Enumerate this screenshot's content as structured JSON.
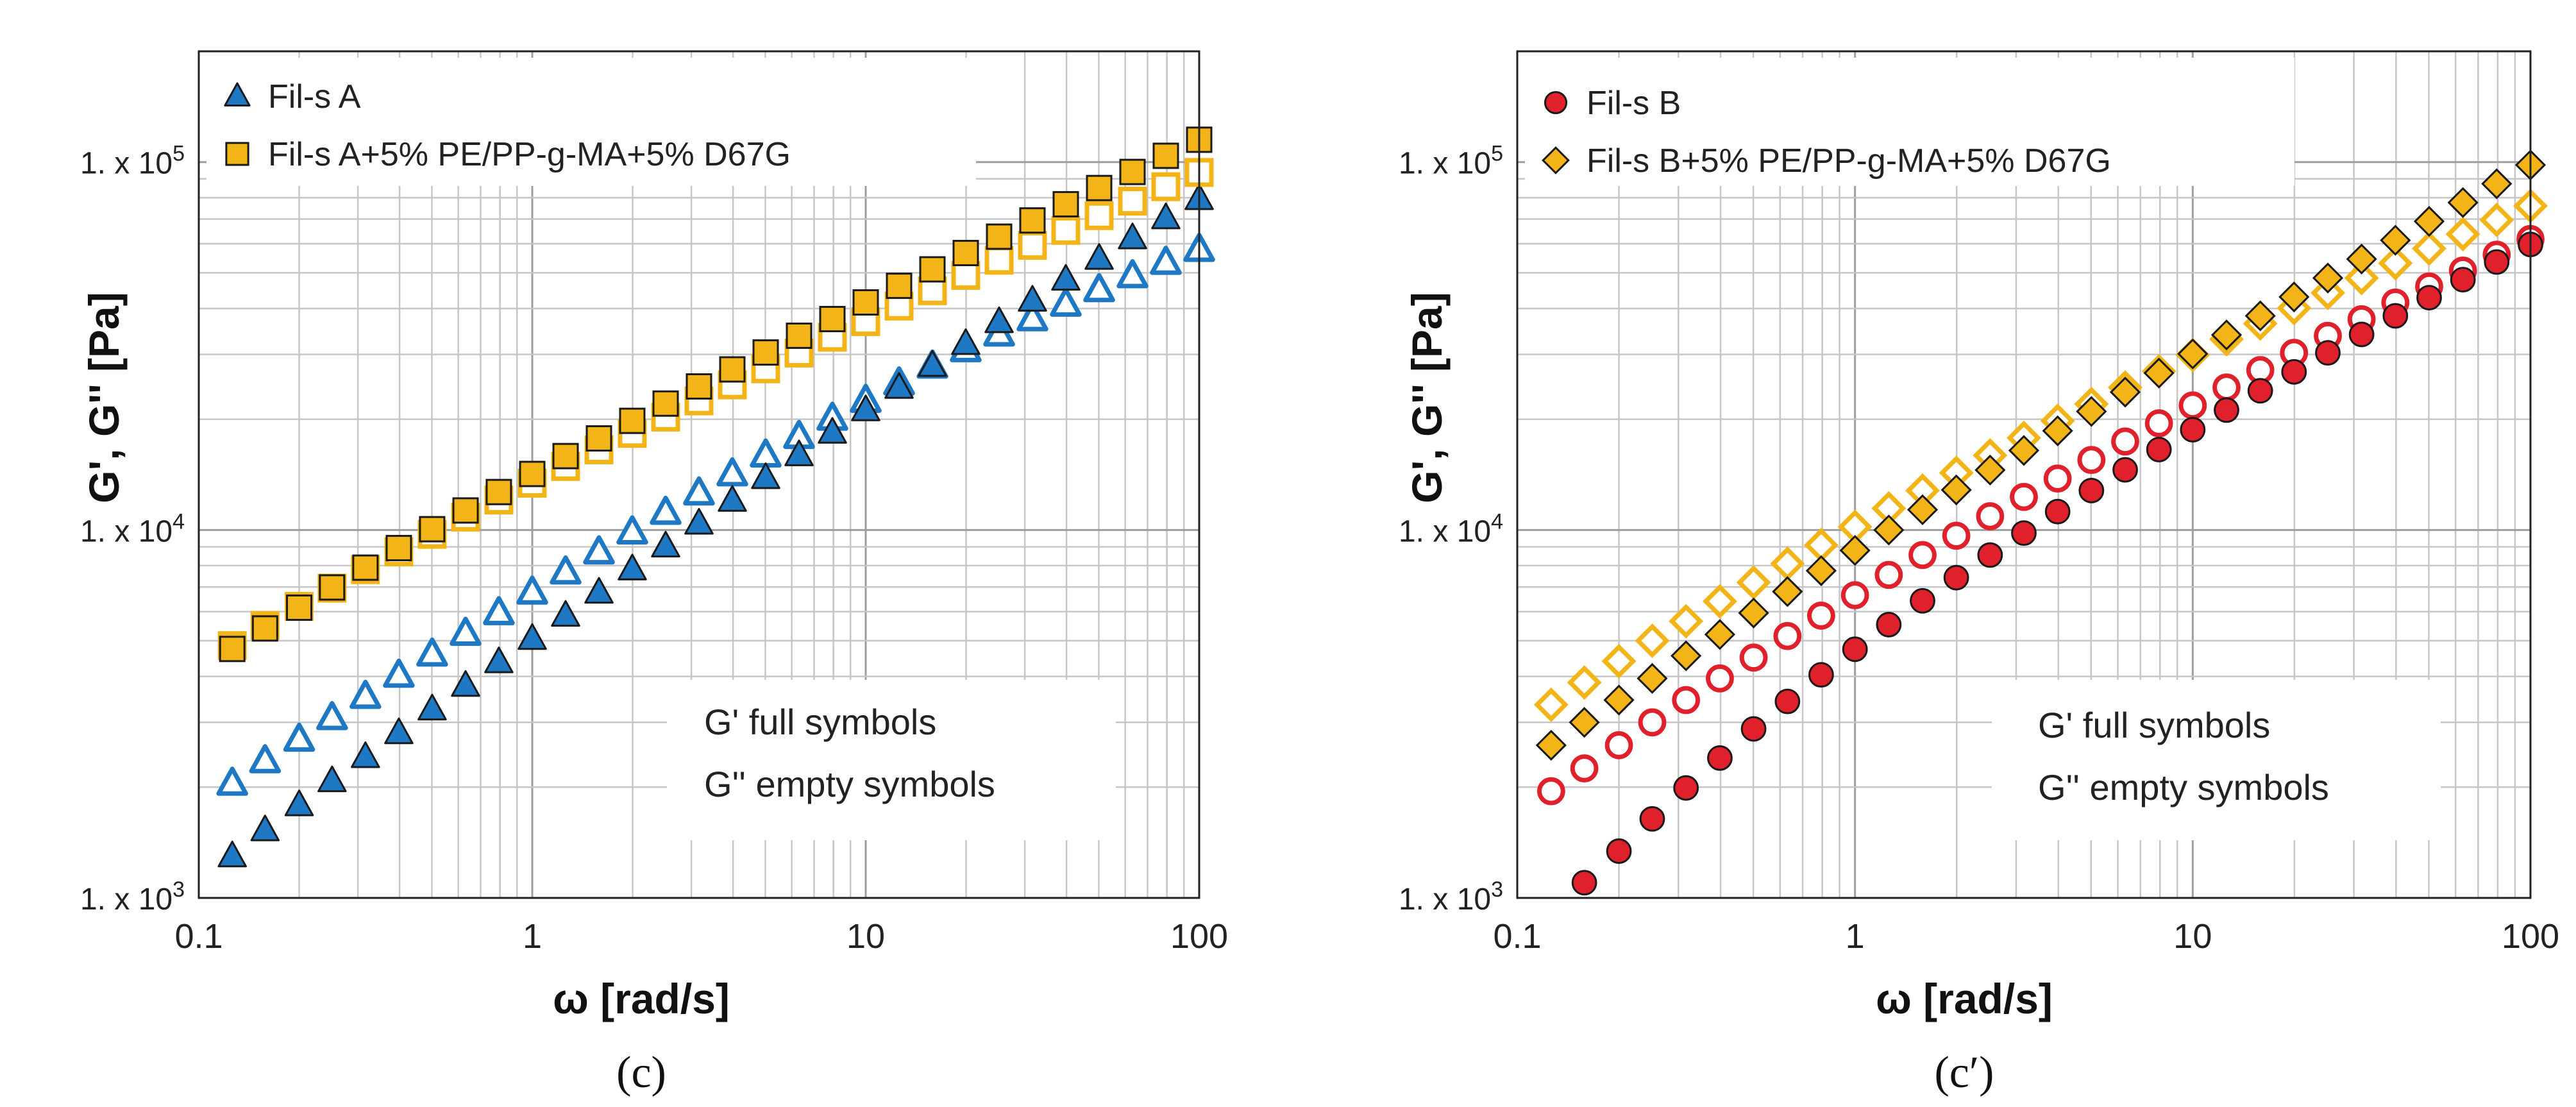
{
  "chart_data": [
    {
      "type": "scatter",
      "panel_label": "(c)",
      "xlabel": "ω [rad/s]",
      "ylabel": "G', G'' [Pa]",
      "xscale": "log",
      "yscale": "log",
      "xlim": [
        0.1,
        100
      ],
      "ylim": [
        1000,
        200000
      ],
      "xticks": [
        {
          "value": 0.1,
          "label": "0.1"
        },
        {
          "value": 1,
          "label": "1"
        },
        {
          "value": 10,
          "label": "10"
        },
        {
          "value": 100,
          "label": "100"
        }
      ],
      "yticks": [
        {
          "value": 1000,
          "label": "1. x 10",
          "exp": "3"
        },
        {
          "value": 10000,
          "label": "1. x 10",
          "exp": "4"
        },
        {
          "value": 100000,
          "label": "1. x 10",
          "exp": "5"
        }
      ],
      "grid": true,
      "legend_position": "top-left",
      "note_lines": [
        "G' full symbols",
        "G'' empty symbols"
      ],
      "note_position": "lower-right",
      "omega": [
        0.126,
        0.158,
        0.2,
        0.251,
        0.316,
        0.398,
        0.501,
        0.631,
        0.794,
        1.0,
        1.259,
        1.585,
        1.995,
        2.512,
        3.162,
        3.981,
        5.012,
        6.31,
        7.943,
        10.0,
        12.59,
        15.85,
        19.95,
        25.12,
        31.62,
        39.81,
        50.12,
        63.1,
        79.43,
        100.0
      ],
      "series": [
        {
          "name": "Fil-s A",
          "marker": "triangle",
          "color": "#1f78c4",
          "G_prime": [
            1300,
            1530,
            1790,
            2080,
            2420,
            2810,
            3260,
            3780,
            4380,
            5070,
            5860,
            6770,
            7830,
            9040,
            10430,
            12030,
            13870,
            16000,
            18420,
            21200,
            24400,
            28000,
            32100,
            36800,
            42100,
            48000,
            54700,
            62200,
            70500,
            79500
          ],
          "G_double_prime": [
            2050,
            2360,
            2700,
            3090,
            3530,
            4030,
            4600,
            5240,
            5960,
            6780,
            7690,
            8720,
            9880,
            11170,
            12610,
            14210,
            15990,
            17960,
            20130,
            22510,
            25100,
            27900,
            30900,
            34100,
            37500,
            41100,
            45000,
            49100,
            53400,
            57900
          ]
        },
        {
          "name": "Fil-s A+5% PE/PP-g-MA+5% D67G",
          "marker": "square",
          "color": "#f2b416",
          "G_prime": [
            4750,
            5400,
            6150,
            6980,
            7900,
            8930,
            10050,
            11300,
            12680,
            14200,
            15880,
            17740,
            19800,
            22060,
            24560,
            27320,
            30370,
            33730,
            37440,
            41550,
            46100,
            51100,
            56600,
            62700,
            69400,
            76800,
            85000,
            94000,
            104000,
            115000
          ],
          "G_double_prime": [
            4850,
            5500,
            6200,
            6950,
            7800,
            8720,
            9730,
            10840,
            12060,
            13400,
            14880,
            16510,
            18300,
            20270,
            22430,
            24800,
            27410,
            30270,
            33410,
            36850,
            40600,
            44700,
            49200,
            54100,
            59400,
            65200,
            71500,
            78300,
            85700,
            93700
          ]
        }
      ]
    },
    {
      "type": "scatter",
      "panel_label": "(c′)",
      "xlabel": "ω [rad/s]",
      "ylabel": "G', G'' [Pa]",
      "xscale": "log",
      "yscale": "log",
      "xlim": [
        0.1,
        100
      ],
      "ylim": [
        1000,
        200000
      ],
      "xticks": [
        {
          "value": 0.1,
          "label": "0.1"
        },
        {
          "value": 1,
          "label": "1"
        },
        {
          "value": 10,
          "label": "10"
        },
        {
          "value": 100,
          "label": "100"
        }
      ],
      "yticks": [
        {
          "value": 1000,
          "label": "1. x 10",
          "exp": "3"
        },
        {
          "value": 10000,
          "label": "1. x 10",
          "exp": "4"
        },
        {
          "value": 100000,
          "label": "1. x 10",
          "exp": "5"
        }
      ],
      "grid": true,
      "legend_position": "top-left",
      "note_lines": [
        "G' full symbols",
        "G'' empty symbols"
      ],
      "note_position": "lower-right",
      "omega": [
        0.126,
        0.158,
        0.2,
        0.251,
        0.316,
        0.398,
        0.501,
        0.631,
        0.794,
        1.0,
        1.259,
        1.585,
        1.995,
        2.512,
        3.162,
        3.981,
        5.012,
        6.31,
        7.943,
        10.0,
        12.59,
        15.85,
        19.95,
        25.12,
        31.62,
        39.81,
        50.12,
        63.1,
        79.43,
        100.0
      ],
      "series": [
        {
          "name": "Fil-s B",
          "marker": "circle",
          "color": "#e0202a",
          "G_prime": [
            null,
            1100,
            1340,
            1640,
            1990,
            2400,
            2880,
            3420,
            4040,
            4740,
            5530,
            6420,
            7420,
            8550,
            9810,
            11220,
            12800,
            14570,
            16540,
            18730,
            21180,
            23900,
            26900,
            30300,
            34000,
            38200,
            42800,
            47900,
            53500,
            59700
          ],
          "G_double_prime": [
            1950,
            2250,
            2600,
            3000,
            3450,
            3950,
            4500,
            5150,
            5850,
            6650,
            7550,
            8550,
            9650,
            10900,
            12300,
            13800,
            15500,
            17400,
            19500,
            21800,
            24400,
            27200,
            30300,
            33700,
            37400,
            41500,
            45900,
            50700,
            56000,
            61800
          ]
        },
        {
          "name": "Fil-s B+5% PE/PP-g-MA+5% D67G",
          "marker": "diamond",
          "color": "#f2b416",
          "G_prime": [
            2600,
            3000,
            3450,
            3950,
            4550,
            5200,
            5950,
            6800,
            7750,
            8800,
            10000,
            11350,
            12850,
            14550,
            16450,
            18600,
            21000,
            23700,
            26700,
            30100,
            33900,
            38200,
            43000,
            48400,
            54500,
            61300,
            69000,
            77600,
            87300,
            98200
          ],
          "G_double_prime": [
            3350,
            3850,
            4400,
            5000,
            5650,
            6400,
            7200,
            8100,
            9100,
            10200,
            11450,
            12800,
            14300,
            15950,
            17800,
            19800,
            22000,
            24400,
            27000,
            29900,
            33000,
            36400,
            40100,
            44100,
            48400,
            53100,
            58200,
            63700,
            69600,
            76000
          ]
        }
      ]
    }
  ]
}
